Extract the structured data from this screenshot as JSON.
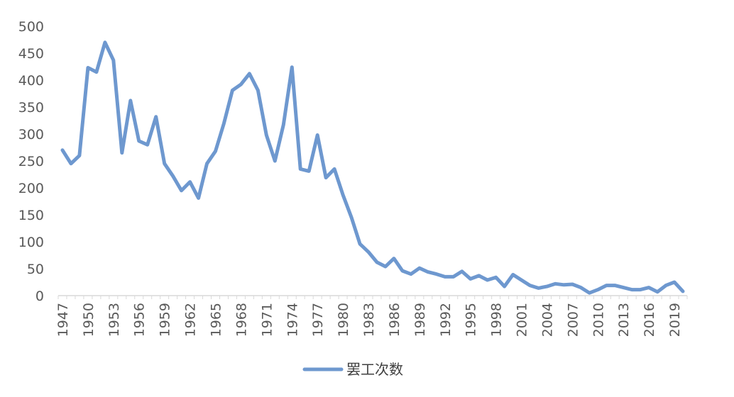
{
  "chart_data": {
    "type": "line",
    "title": "",
    "xlabel": "",
    "ylabel": "",
    "ylim": [
      0,
      500
    ],
    "yticks": [
      "0",
      "50",
      "100",
      "150",
      "200",
      "250",
      "300",
      "350",
      "400",
      "450",
      "500"
    ],
    "xtick_labels": [
      "1947",
      "1950",
      "1953",
      "1956",
      "1959",
      "1962",
      "1965",
      "1968",
      "1971",
      "1974",
      "1977",
      "1980",
      "1983",
      "1986",
      "1989",
      "1992",
      "1995",
      "1998",
      "2001",
      "2004",
      "2007",
      "2010",
      "2013",
      "2016",
      "2019"
    ],
    "grid": false,
    "legend_position": "bottom",
    "x": [
      1947,
      1948,
      1949,
      1950,
      1951,
      1952,
      1953,
      1954,
      1955,
      1956,
      1957,
      1958,
      1959,
      1960,
      1961,
      1962,
      1963,
      1964,
      1965,
      1966,
      1967,
      1968,
      1969,
      1970,
      1971,
      1972,
      1973,
      1974,
      1975,
      1976,
      1977,
      1978,
      1979,
      1980,
      1981,
      1982,
      1983,
      1984,
      1985,
      1986,
      1987,
      1988,
      1989,
      1990,
      1991,
      1992,
      1993,
      1994,
      1995,
      1996,
      1997,
      1998,
      1999,
      2000,
      2001,
      2002,
      2003,
      2004,
      2005,
      2006,
      2007,
      2008,
      2009,
      2010,
      2011,
      2012,
      2013,
      2014,
      2015,
      2016,
      2017,
      2018,
      2019,
      2020
    ],
    "series": [
      {
        "name": "罢工次数",
        "color": "#6e98cf",
        "values": [
          270,
          245,
          260,
          423,
          415,
          470,
          437,
          265,
          362,
          287,
          280,
          332,
          245,
          222,
          195,
          211,
          181,
          245,
          268,
          320,
          381,
          392,
          412,
          381,
          298,
          250,
          317,
          424,
          235,
          231,
          298,
          219,
          235,
          187,
          145,
          96,
          81,
          62,
          54,
          69,
          46,
          40,
          51,
          44,
          40,
          35,
          35,
          45,
          31,
          37,
          29,
          34,
          17,
          39,
          29,
          19,
          14,
          17,
          22,
          20,
          21,
          15,
          5,
          11,
          19,
          19,
          15,
          11,
          11,
          15,
          7,
          19,
          25,
          8
        ]
      }
    ]
  }
}
